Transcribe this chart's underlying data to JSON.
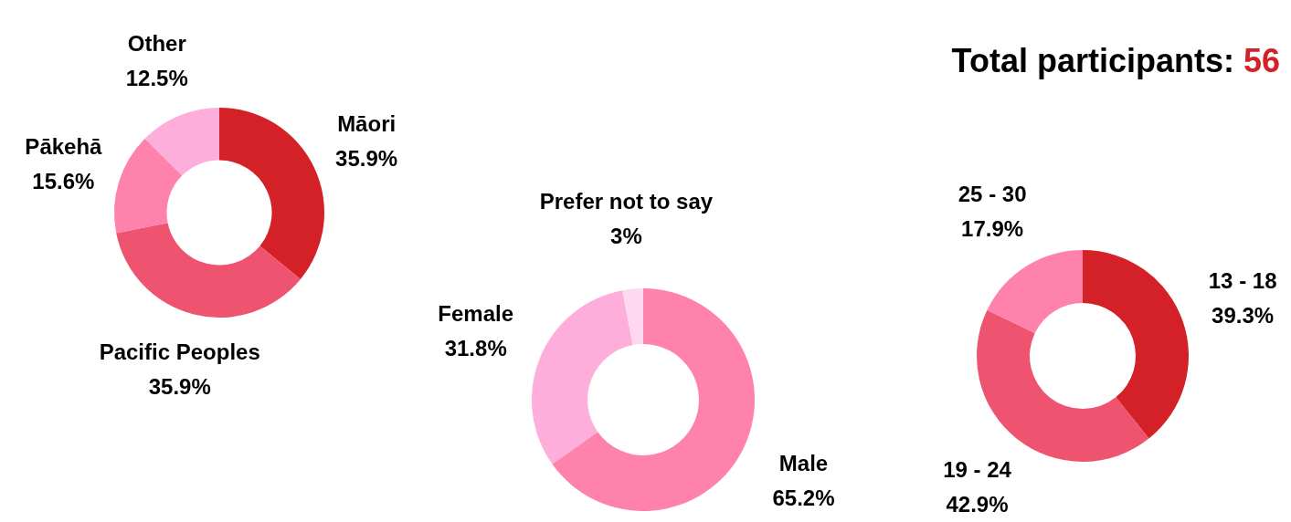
{
  "chart_data": [
    {
      "type": "donut",
      "categories": [
        "Māori",
        "Pacific Peoples",
        "Pākehā",
        "Other"
      ],
      "values": [
        35.9,
        35.9,
        15.6,
        12.5
      ],
      "value_labels": [
        "35.9%",
        "35.9%",
        "15.6%",
        "12.5%"
      ],
      "colors": [
        "#d42027",
        "#ee5370",
        "#fe82ab",
        "#fdaedb"
      ],
      "legend": false
    },
    {
      "type": "donut",
      "categories": [
        "Male",
        "Female",
        "Prefer not to say"
      ],
      "values": [
        65.2,
        31.8,
        3
      ],
      "value_labels": [
        "65.2%",
        "31.8%",
        "3%"
      ],
      "colors": [
        "#fe82ab",
        "#fdaedb",
        "#fdd8ee"
      ],
      "legend": false
    },
    {
      "type": "donut",
      "categories": [
        "13 - 18",
        "19 - 24",
        "25 - 30"
      ],
      "values": [
        39.3,
        42.9,
        17.9
      ],
      "value_labels": [
        "39.3%",
        "42.9%",
        "17.9%"
      ],
      "colors": [
        "#d42027",
        "#ee5370",
        "#fe82ab"
      ],
      "legend": false
    },
    {
      "type": "other",
      "annotations": [
        "Total participants:",
        "56"
      ],
      "colors": [
        "#000000",
        "#d42027"
      ]
    }
  ]
}
